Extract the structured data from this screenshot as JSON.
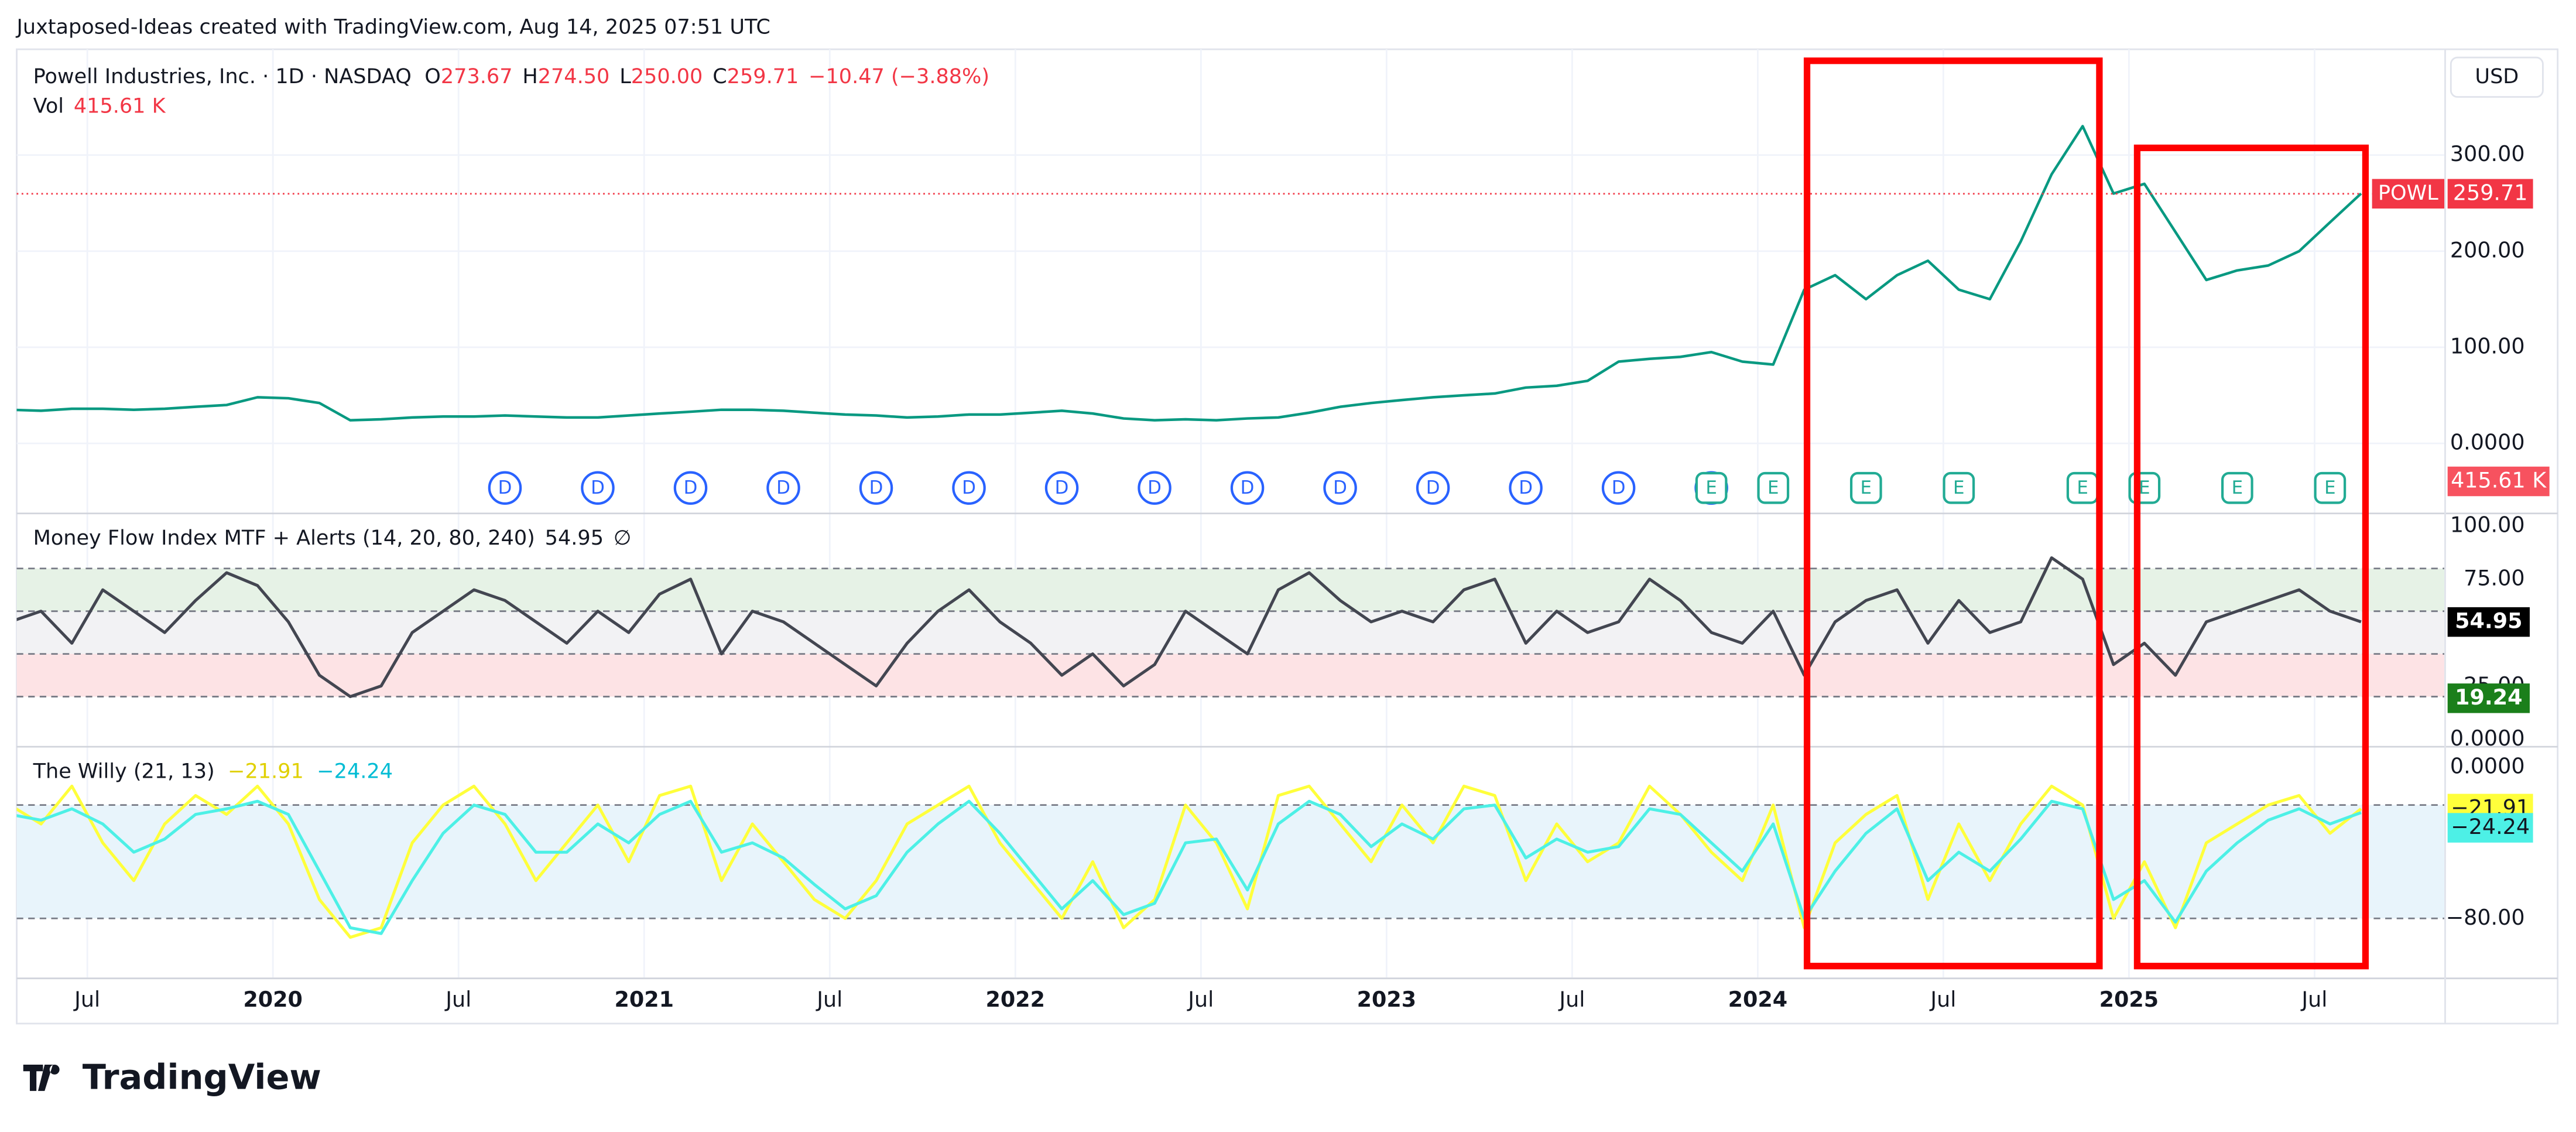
{
  "attribution": "Juxtaposed-Ideas created with TradingView.com, Aug 14, 2025 07:51 UTC",
  "logo": "TradingView",
  "currency": "USD",
  "chart_data": [
    {
      "type": "line",
      "title": "Powell Industries, Inc. · 1D · NASDAQ",
      "ohlc": [
        {
          "key": "O",
          "value": "273.67"
        },
        {
          "key": "H",
          "value": "274.50"
        },
        {
          "key": "L",
          "value": "250.00"
        },
        {
          "key": "C",
          "value": "259.71"
        }
      ],
      "change": "−10.47 (−3.88%)",
      "volume": {
        "label": "Vol",
        "value": "415.61 K"
      },
      "symbol": "POWL",
      "x": [
        "2019-04",
        "2019-05",
        "2019-06",
        "2019-07",
        "2019-08",
        "2019-09",
        "2019-10",
        "2019-11",
        "2019-12",
        "2020-01",
        "2020-02",
        "2020-03",
        "2020-04",
        "2020-05",
        "2020-06",
        "2020-07",
        "2020-08",
        "2020-09",
        "2020-10",
        "2020-11",
        "2020-12",
        "2021-01",
        "2021-02",
        "2021-03",
        "2021-04",
        "2021-05",
        "2021-06",
        "2021-07",
        "2021-08",
        "2021-09",
        "2021-10",
        "2021-11",
        "2021-12",
        "2022-01",
        "2022-02",
        "2022-03",
        "2022-04",
        "2022-05",
        "2022-06",
        "2022-07",
        "2022-08",
        "2022-09",
        "2022-10",
        "2022-11",
        "2022-12",
        "2023-01",
        "2023-02",
        "2023-03",
        "2023-04",
        "2023-05",
        "2023-06",
        "2023-07",
        "2023-08",
        "2023-09",
        "2023-10",
        "2023-11",
        "2023-12",
        "2024-01",
        "2024-02",
        "2024-03",
        "2024-04",
        "2024-05",
        "2024-06",
        "2024-07",
        "2024-08",
        "2024-09",
        "2024-10",
        "2024-11",
        "2024-12",
        "2025-01",
        "2025-02",
        "2025-03",
        "2025-04",
        "2025-05",
        "2025-06",
        "2025-07",
        "2025-08"
      ],
      "series": [
        {
          "name": "POWL",
          "color": "#089981",
          "values": [
            35,
            34,
            36,
            36,
            35,
            36,
            38,
            40,
            48,
            47,
            42,
            24,
            25,
            27,
            28,
            28,
            29,
            28,
            27,
            27,
            29,
            31,
            33,
            35,
            35,
            34,
            32,
            30,
            29,
            27,
            28,
            30,
            30,
            32,
            34,
            31,
            26,
            24,
            25,
            24,
            26,
            27,
            32,
            38,
            42,
            45,
            48,
            50,
            52,
            58,
            60,
            65,
            85,
            88,
            90,
            95,
            85,
            82,
            160,
            175,
            150,
            175,
            190,
            160,
            150,
            210,
            280,
            330,
            260,
            270,
            220,
            170,
            180,
            185,
            200,
            230,
            260
          ]
        }
      ],
      "last": {
        "value": 259.71
      },
      "ylim": [
        -72,
        410
      ],
      "yticks": [
        {
          "value": 300,
          "label": "300.00"
        },
        {
          "value": 200,
          "label": "200.00"
        },
        {
          "value": 100,
          "label": "100.00"
        },
        {
          "value": 0,
          "label": "0.0000"
        }
      ],
      "xticks": [
        {
          "value": "2019-07",
          "label": "Jul"
        },
        {
          "value": "2020-01",
          "label": "2020"
        },
        {
          "value": "2020-07",
          "label": "Jul"
        },
        {
          "value": "2021-01",
          "label": "2021"
        },
        {
          "value": "2021-07",
          "label": "Jul"
        },
        {
          "value": "2022-01",
          "label": "2022"
        },
        {
          "value": "2022-07",
          "label": "Jul"
        },
        {
          "value": "2023-01",
          "label": "2023"
        },
        {
          "value": "2023-07",
          "label": "Jul"
        },
        {
          "value": "2024-01",
          "label": "2024"
        },
        {
          "value": "2024-07",
          "label": "Jul"
        },
        {
          "value": "2025-01",
          "label": "2025"
        },
        {
          "value": "2025-07",
          "label": "Jul"
        }
      ],
      "events": [
        {
          "x": "2020-08",
          "label": "D"
        },
        {
          "x": "2020-11",
          "label": "D"
        },
        {
          "x": "2021-02",
          "label": "D"
        },
        {
          "x": "2021-05",
          "label": "D"
        },
        {
          "x": "2021-08",
          "label": "D"
        },
        {
          "x": "2021-11",
          "label": "D"
        },
        {
          "x": "2022-02",
          "label": "D"
        },
        {
          "x": "2022-05",
          "label": "D"
        },
        {
          "x": "2022-08",
          "label": "D"
        },
        {
          "x": "2022-11",
          "label": "D"
        },
        {
          "x": "2023-02",
          "label": "D"
        },
        {
          "x": "2023-05",
          "label": "D"
        },
        {
          "x": "2023-08",
          "label": "D"
        },
        {
          "x": "2023-11",
          "label": "D"
        },
        {
          "x": "2023-11",
          "label": "E"
        },
        {
          "x": "2024-01",
          "label": "E"
        },
        {
          "x": "2024-04",
          "label": "E"
        },
        {
          "x": "2024-07",
          "label": "E"
        },
        {
          "x": "2024-11",
          "label": "E"
        },
        {
          "x": "2025-01",
          "label": "E"
        },
        {
          "x": "2025-04",
          "label": "E"
        },
        {
          "x": "2025-07",
          "label": "E"
        }
      ]
    },
    {
      "type": "line",
      "title": "Money Flow Index MTF + Alerts (14, 20, 80, 240)",
      "legend_value": "54.95",
      "legend_symbol": "∅",
      "series": [
        {
          "color": "#434651",
          "values": [
            55,
            60,
            45,
            70,
            60,
            50,
            65,
            78,
            72,
            55,
            30,
            20,
            25,
            50,
            60,
            70,
            65,
            55,
            45,
            60,
            50,
            68,
            75,
            40,
            60,
            55,
            45,
            35,
            25,
            45,
            60,
            70,
            55,
            45,
            30,
            40,
            25,
            35,
            60,
            50,
            40,
            70,
            78,
            65,
            55,
            60,
            55,
            70,
            75,
            45,
            60,
            50,
            55,
            75,
            65,
            50,
            45,
            60,
            30,
            55,
            65,
            70,
            45,
            65,
            50,
            55,
            85,
            75,
            35,
            45,
            30,
            55,
            60,
            65,
            70,
            60,
            55
          ]
        }
      ],
      "ylim": [
        -2.3,
        105.4
      ],
      "yticks": [
        {
          "value": 100,
          "label": "100.00"
        },
        {
          "value": 75,
          "label": "75.00"
        },
        {
          "value": 25,
          "label": "25.00"
        },
        {
          "value": 0,
          "label": "0.0000"
        }
      ],
      "levels": [
        80,
        60,
        40,
        20
      ],
      "bands": [
        {
          "from": 60,
          "to": 80,
          "color": "#e6f2e6"
        },
        {
          "from": 40,
          "to": 60,
          "color": "#f2f2f4"
        },
        {
          "from": 20,
          "to": 40,
          "color": "#fde3e5"
        }
      ],
      "axis_labels": [
        {
          "value": 54.95,
          "color": "#000000",
          "text": "#ffffff"
        },
        {
          "value": 19.24,
          "color": "#1b7f1b",
          "text": "#ffffff"
        }
      ]
    },
    {
      "type": "line",
      "title": "The Willy (21, 13)",
      "series": [
        {
          "color": "#ffff3b",
          "last": {
            "value": -21.91,
            "label": "−21.91"
          },
          "values": [
            -20,
            -30,
            -10,
            -40,
            -60,
            -30,
            -15,
            -25,
            -10,
            -30,
            -70,
            -90,
            -85,
            -40,
            -20,
            -10,
            -30,
            -60,
            -40,
            -20,
            -50,
            -15,
            -10,
            -60,
            -30,
            -50,
            -70,
            -80,
            -60,
            -30,
            -20,
            -10,
            -40,
            -60,
            -80,
            -50,
            -85,
            -70,
            -20,
            -40,
            -75,
            -15,
            -10,
            -30,
            -50,
            -20,
            -40,
            -10,
            -15,
            -60,
            -30,
            -50,
            -40,
            -10,
            -25,
            -45,
            -60,
            -20,
            -85,
            -40,
            -25,
            -15,
            -70,
            -30,
            -60,
            -30,
            -10,
            -20,
            -80,
            -50,
            -85,
            -40,
            -30,
            -20,
            -15,
            -35,
            -22
          ]
        },
        {
          "color": "#4df0e6",
          "last": {
            "value": -24.24,
            "label": "−24.24"
          },
          "values": [
            -25,
            -28,
            -22,
            -30,
            -45,
            -38,
            -25,
            -22,
            -18,
            -25,
            -55,
            -85,
            -88,
            -60,
            -35,
            -20,
            -25,
            -45,
            -45,
            -30,
            -40,
            -25,
            -18,
            -45,
            -40,
            -48,
            -62,
            -75,
            -68,
            -45,
            -30,
            -18,
            -35,
            -55,
            -75,
            -60,
            -78,
            -72,
            -40,
            -38,
            -65,
            -30,
            -18,
            -25,
            -42,
            -30,
            -38,
            -22,
            -20,
            -48,
            -38,
            -45,
            -42,
            -22,
            -25,
            -40,
            -55,
            -30,
            -80,
            -55,
            -35,
            -22,
            -60,
            -45,
            -55,
            -38,
            -18,
            -22,
            -70,
            -60,
            -82,
            -55,
            -40,
            -28,
            -22,
            -30,
            -24
          ]
        }
      ],
      "ylim": [
        -111.3,
        10.4
      ],
      "yticks": [
        {
          "value": 0,
          "label": "0.0000"
        },
        {
          "value": -80,
          "label": "−80.00"
        }
      ],
      "levels": [
        -20,
        -80
      ],
      "bands": [
        {
          "from": -80,
          "to": -20,
          "color": "#e8f4fb"
        }
      ]
    }
  ]
}
